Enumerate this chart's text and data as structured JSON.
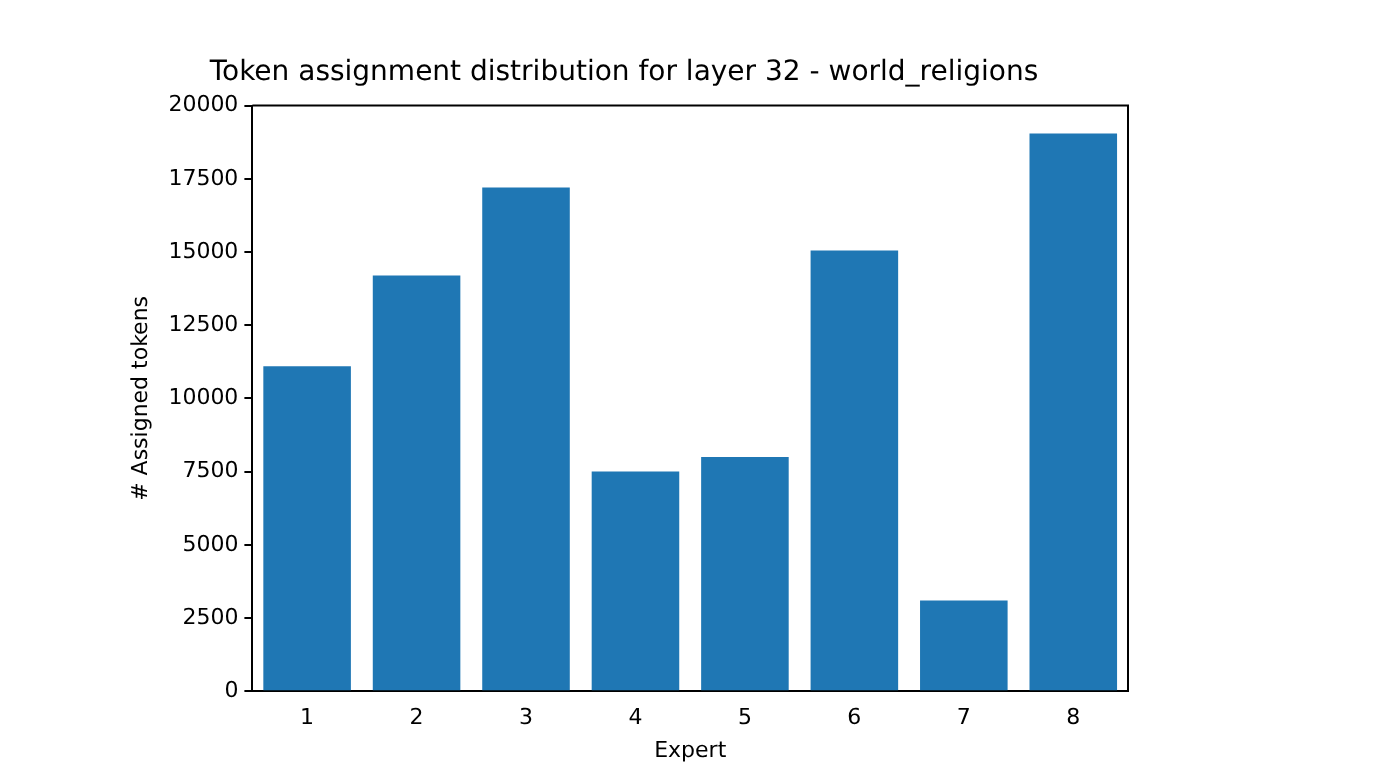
{
  "chart_data": {
    "type": "bar",
    "title": "Token assignment distribution for layer 32 - world_religions",
    "xlabel": "Expert",
    "ylabel": "# Assigned tokens",
    "categories": [
      "1",
      "2",
      "3",
      "4",
      "5",
      "6",
      "7",
      "8"
    ],
    "values": [
      11100,
      14200,
      17200,
      7500,
      8000,
      15050,
      3100,
      19050
    ],
    "color": "#1f77b4",
    "ylim": [
      0,
      20000
    ],
    "yticks": [
      0,
      2500,
      5000,
      7500,
      10000,
      12500,
      15000,
      17500,
      20000
    ],
    "grid": false,
    "legend": false
  }
}
